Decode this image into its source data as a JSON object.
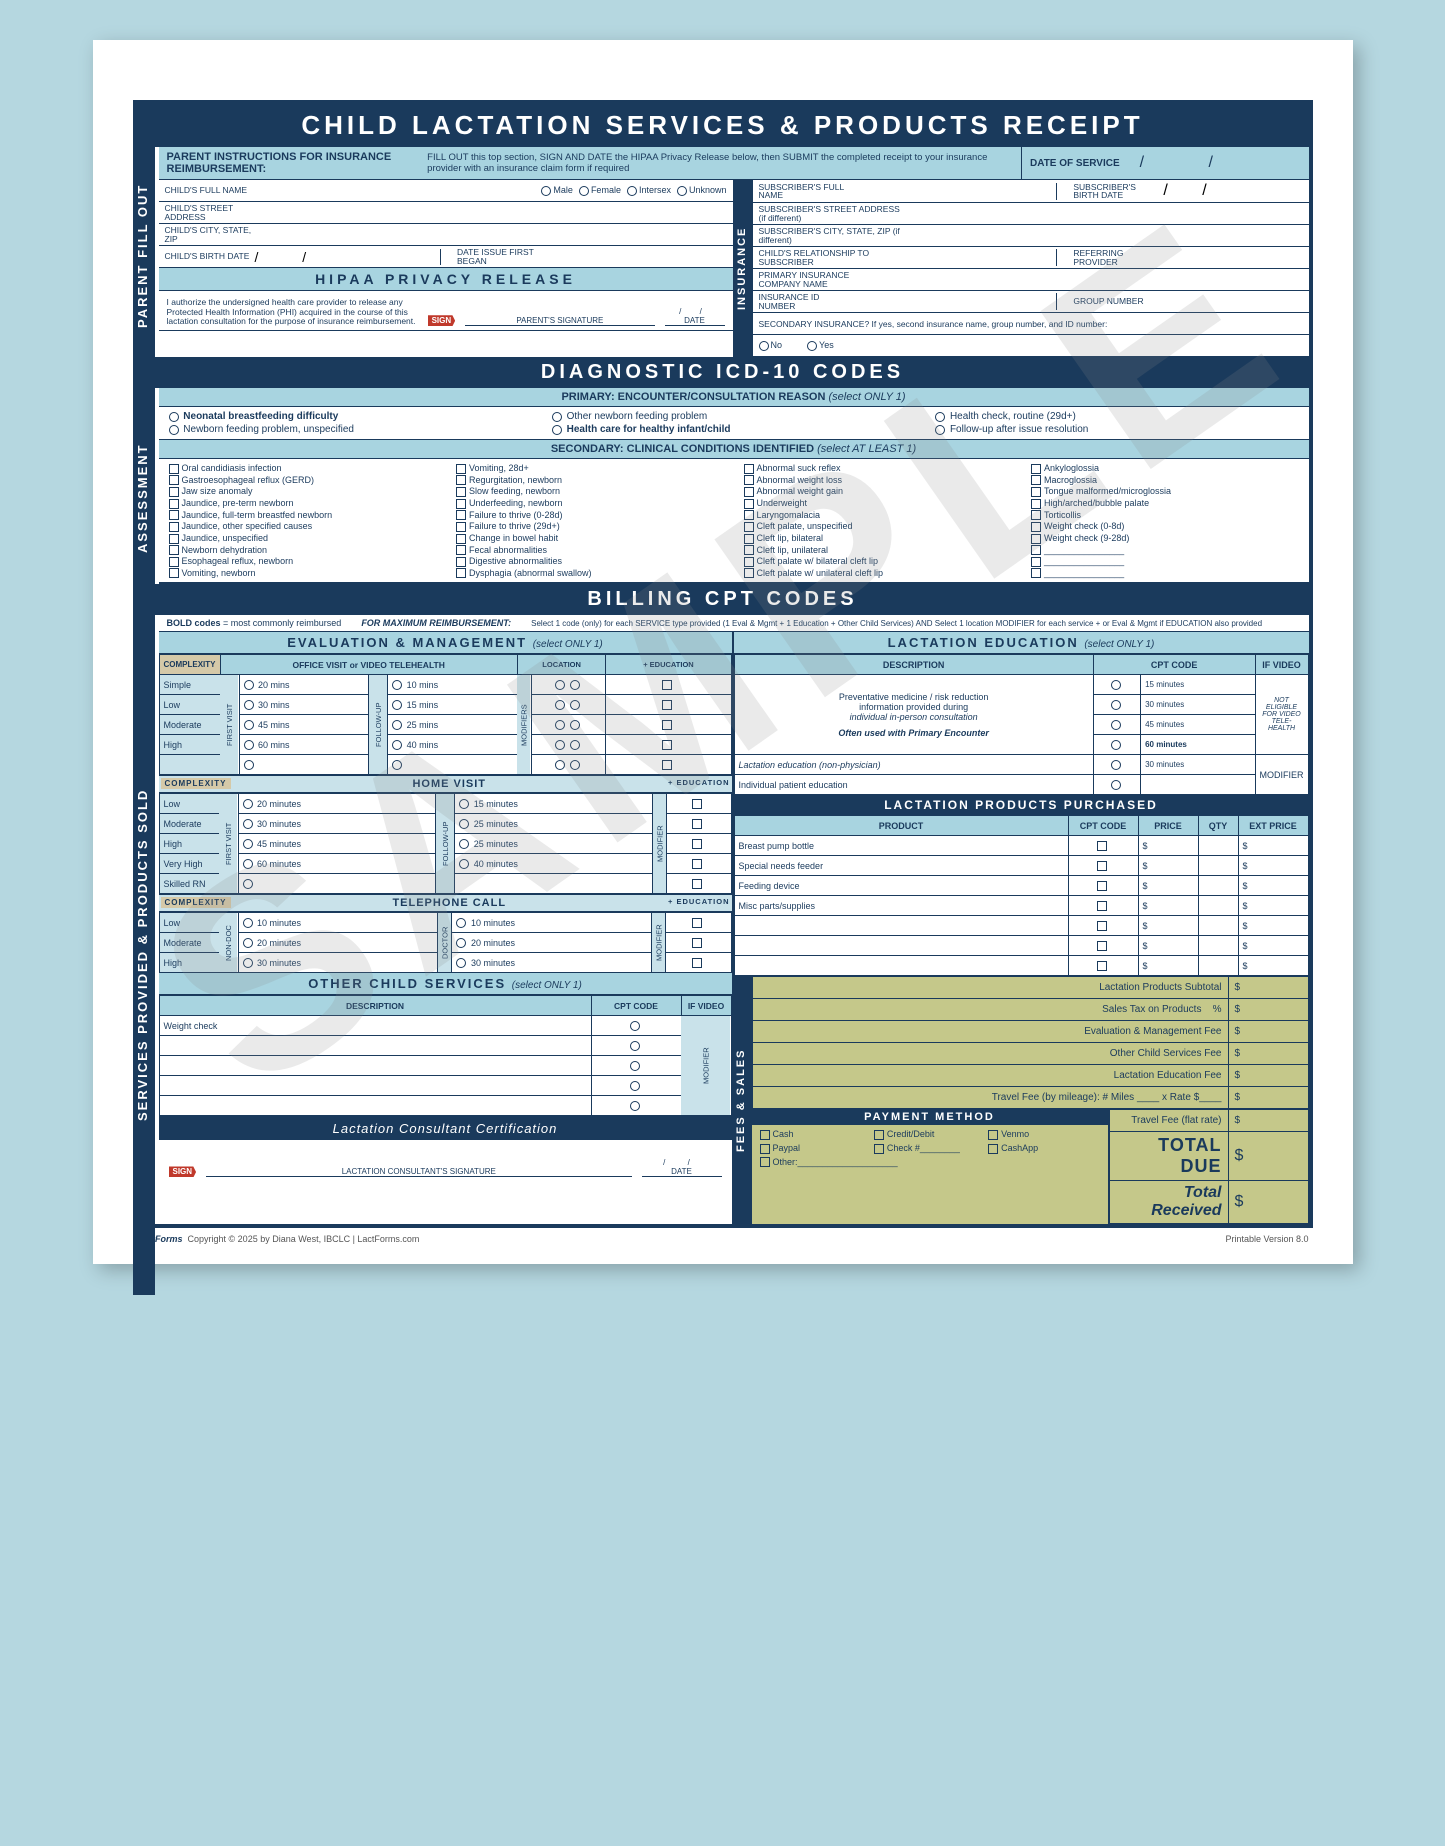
{
  "title": "CHILD LACTATION SERVICES & PRODUCTS RECEIPT",
  "watermark": "SAMPLE",
  "vlabels": {
    "parent": "PARENT FILL OUT",
    "assessment": "ASSESSMENT",
    "services": "SERVICES PROVIDED & PRODUCTS SOLD",
    "insurance": "INSURANCE",
    "fees": "FEES & SALES"
  },
  "instructions": {
    "title": "PARENT INSTRUCTIONS FOR INSURANCE REIMBURSEMENT:",
    "body": "FILL OUT this top section, SIGN AND DATE the HIPAA Privacy Release below, then SUBMIT the completed receipt to your insurance provider with an insurance claim form if required",
    "date_service": "DATE OF SERVICE"
  },
  "parent_fields": {
    "child_name": "CHILD'S FULL NAME",
    "gender": [
      "Male",
      "Female",
      "Intersex",
      "Unknown"
    ],
    "street": "CHILD'S STREET ADDRESS",
    "city": "CHILD'S CITY, STATE, ZIP",
    "birth": "CHILD'S BIRTH DATE",
    "issue": "DATE ISSUE FIRST BEGAN"
  },
  "insurance_fields": {
    "sub_name": "SUBSCRIBER'S FULL NAME",
    "sub_birth": "SUBSCRIBER'S BIRTH DATE",
    "sub_street": "SUBSCRIBER'S STREET ADDRESS (if different)",
    "sub_city": "SUBSCRIBER'S CITY, STATE, ZIP (if different)",
    "relationship": "CHILD'S RELATIONSHIP TO SUBSCRIBER",
    "referring": "REFERRING PROVIDER",
    "company": "PRIMARY INSURANCE COMPANY NAME",
    "id": "INSURANCE ID NUMBER",
    "group": "GROUP NUMBER",
    "secondary": "SECONDARY INSURANCE?  If yes, second insurance name, group number, and ID number:",
    "no": "No",
    "yes": "Yes"
  },
  "hipaa": {
    "title": "HIPAA PRIVACY RELEASE",
    "body": "I authorize the undersigned health care provider to release any Protected Health Information (PHI) acquired in the course of this lactation consultation for the purpose of insurance reimbursement.",
    "sign": "SIGN",
    "sig_label": "PARENT'S SIGNATURE",
    "date_label": "DATE"
  },
  "icd": {
    "header": "DIAGNOSTIC ICD-10 CODES",
    "primary_title": "PRIMARY:  ENCOUNTER/CONSULTATION REASON",
    "select_one": "(select ONLY 1)",
    "primary_opts": [
      "Neonatal breastfeeding difficulty",
      "Other newborn feeding problem",
      "Health check, routine (29d+)",
      "Newborn feeding problem, unspecified",
      "Health care for healthy infant/child",
      "Follow-up after issue resolution"
    ],
    "secondary_title": "SECONDARY:  CLINICAL CONDITIONS IDENTIFIED",
    "select_least": "(select AT LEAST 1)",
    "secondary": [
      "Oral candidiasis infection",
      "Vomiting, 28d+",
      "Abnormal suck reflex",
      "Ankyloglossia",
      "Gastroesophageal reflux (GERD)",
      "Regurgitation, newborn",
      "Abnormal weight loss",
      "Macroglossia",
      "Jaw size anomaly",
      "Slow feeding, newborn",
      "Abnormal weight gain",
      "Tongue malformed/microglossia",
      "Jaundice, pre-term newborn",
      "Underfeeding, newborn",
      "Underweight",
      "High/arched/bubble palate",
      "Jaundice, full-term breastfed newborn",
      "Failure to thrive (0-28d)",
      "Laryngomalacia",
      "Torticollis",
      "Jaundice, other specified causes",
      "Failure to thrive (29d+)",
      "Cleft palate, unspecified",
      "Weight check (0-8d)",
      "Jaundice, unspecified",
      "Change in bowel habit",
      "Cleft lip, bilateral",
      "Weight check (9-28d)",
      "Newborn dehydration",
      "Fecal abnormalities",
      "Cleft lip, unilateral",
      "",
      "Esophageal reflux, newborn",
      "Digestive abnormalities",
      "Cleft palate w/ bilateral cleft lip",
      "",
      "Vomiting, newborn",
      "Dysphagia (abnormal swallow)",
      "Cleft palate w/ unilateral cleft lip",
      ""
    ]
  },
  "cpt": {
    "header": "BILLING CPT CODES",
    "note_bold": "BOLD codes",
    "note_bold2": " = most commonly reimbursed",
    "note_max": "FOR MAXIMUM REIMBURSEMENT:",
    "note_detail": "Select 1 code (only) for each SERVICE type provided (1 Eval & Mgmt + 1 Education + Other Child Services) AND Select 1 location MODIFIER for each service + or Eval & Mgmt if EDUCATION also provided"
  },
  "em": {
    "title": "EVALUATION & MANAGEMENT",
    "office_title": "OFFICE VISIT or VIDEO TELEHEALTH",
    "complexity": "COMPLEXITY",
    "location": "LOCATION",
    "office": "OFFICE",
    "video": "VIDEO",
    "education": "+ EDUCATION",
    "first_visit": "FIRST VISIT",
    "follow_up": "FOLLOW-UP",
    "modifiers": "MODIFIERS",
    "modifier": "MODIFIER",
    "levels": [
      "Simple",
      "Low",
      "Moderate",
      "High",
      ""
    ],
    "office_first": [
      "20 mins",
      "30 mins",
      "45 mins",
      "60 mins",
      ""
    ],
    "office_follow": [
      "10 mins",
      "15 mins",
      "25 mins",
      "40 mins",
      ""
    ],
    "home_title": "HOME VISIT",
    "home_levels": [
      "Low",
      "Moderate",
      "High",
      "Very High",
      "Skilled RN"
    ],
    "home_first": [
      "20 minutes",
      "30 minutes",
      "45 minutes",
      "60 minutes",
      ""
    ],
    "home_follow": [
      "15 minutes",
      "25 minutes",
      "25 minutes",
      "40 minutes",
      ""
    ],
    "phone_title": "TELEPHONE CALL",
    "phone_levels": [
      "Low",
      "Moderate",
      "High"
    ],
    "nondoc": "NON-DOC",
    "doctor": "DOCTOR",
    "phone_times": [
      "10 minutes",
      "20 minutes",
      "30 minutes"
    ],
    "other_title": "OTHER CHILD SERVICES",
    "description": "DESCRIPTION",
    "cpt_code": "CPT CODE",
    "if_video": "IF VIDEO",
    "weight_check": "Weight check"
  },
  "le": {
    "title": "LACTATION EDUCATION",
    "desc1a": "Preventative medicine / risk reduction",
    "desc1b": "information provided during",
    "desc1c": "individual in-person consultation",
    "desc1d": "Often used with Primary Encounter",
    "times": [
      "15 minutes",
      "30 minutes",
      "45 minutes",
      "60 minutes"
    ],
    "not_eligible": "NOT ELIGIBLE FOR VIDEO TELE-HEALTH",
    "desc2": "Lactation education (non-physician)",
    "desc3": "Individual patient education",
    "time30": "30 minutes"
  },
  "products": {
    "title": "LACTATION PRODUCTS PURCHASED",
    "headers": [
      "PRODUCT",
      "CPT CODE",
      "PRICE",
      "QTY",
      "EXT PRICE"
    ],
    "items": [
      "Breast pump bottle",
      "Special needs feeder",
      "Feeding device",
      "Misc parts/supplies",
      "",
      "",
      ""
    ]
  },
  "fees": {
    "subtotal": "Lactation Products Subtotal",
    "tax": "Sales Tax on Products",
    "em_fee": "Evaluation & Management Fee",
    "other_fee": "Other Child Services Fee",
    "le_fee": "Lactation Education Fee",
    "travel_mileage": "Travel Fee (by mileage):  # Miles",
    "rate": "x Rate",
    "travel_flat": "Travel Fee (flat rate)",
    "total_due": "TOTAL DUE",
    "total_received": "Total Received",
    "percent": "%",
    "dollar": "$"
  },
  "payment": {
    "title": "PAYMENT METHOD",
    "opts": [
      "Cash",
      "Credit/Debit",
      "Venmo",
      "Paypal",
      "Check #________",
      "CashApp",
      "Other:____________________"
    ]
  },
  "cert": {
    "title": "Lactation Consultant Certification",
    "sig": "LACTATION CONSULTANT'S SIGNATURE",
    "date": "DATE"
  },
  "footer": {
    "logo": "LactForms",
    "copyright": "Copyright © 2025 by Diana West, IBCLC  |  LactForms.com",
    "version": "Printable Version 8.0"
  }
}
